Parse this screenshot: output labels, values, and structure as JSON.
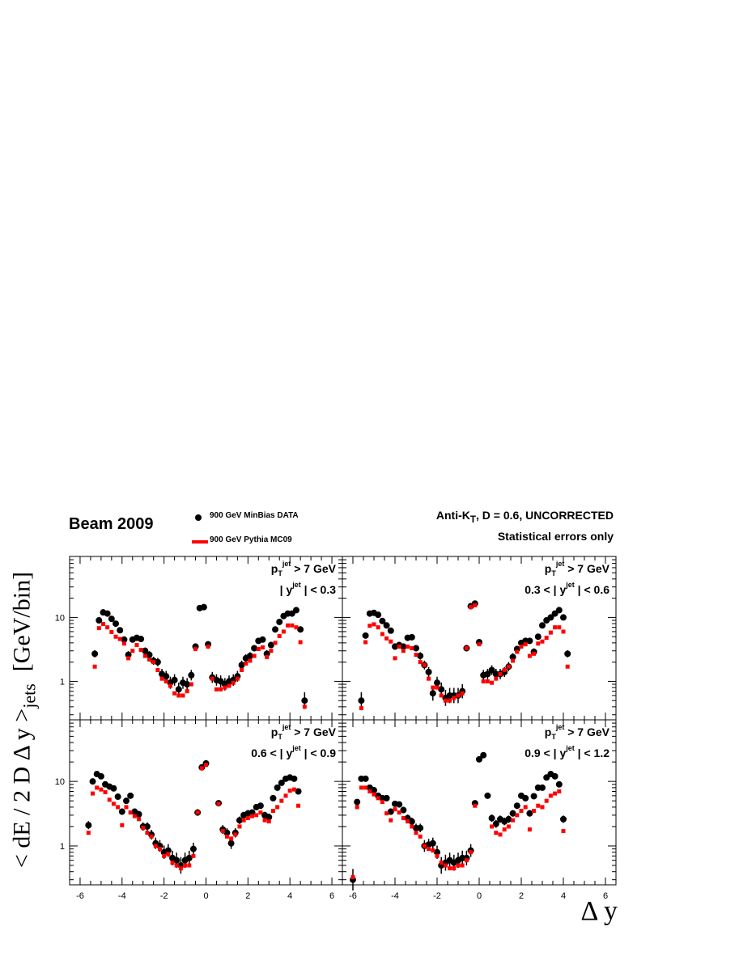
{
  "header": {
    "experiment": "Beam 2009",
    "algorithm_html": "Anti-K<sub>T</sub>, D = 0.6, UNCORRECTED",
    "note": "Statistical errors only"
  },
  "legend": {
    "data_label": "900 GeV MinBias DATA",
    "mc_label": "900 GeV Pythia MC09"
  },
  "colors": {
    "data": "#000000",
    "mc": "#ff0000"
  },
  "axes": {
    "ylabel": "< dE / 2 D Δ y >jets  [GeV/bin]",
    "xlabel": "Δ y",
    "xlim": [
      -6.5,
      6.5
    ],
    "ylim": [
      0.25,
      90
    ],
    "ylog": true,
    "xticks": [
      "-6",
      "-4",
      "-2",
      "0",
      "2",
      "4",
      "6"
    ],
    "yticks": [
      "1",
      "10"
    ]
  },
  "chart_data": [
    {
      "type": "scatter",
      "panel": "top-left",
      "cut_pt": "p_T^jet > 7 GeV",
      "cut_y": "| y^jet | < 0.3",
      "x": [
        -5.3,
        -5.1,
        -4.9,
        -4.7,
        -4.5,
        -4.3,
        -4.1,
        -3.9,
        -3.7,
        -3.5,
        -3.3,
        -3.1,
        -2.9,
        -2.7,
        -2.5,
        -2.3,
        -2.1,
        -1.9,
        -1.7,
        -1.5,
        -1.3,
        -1.1,
        -0.9,
        -0.7,
        -0.5,
        -0.3,
        -0.1,
        0.1,
        0.3,
        0.5,
        0.7,
        0.9,
        1.1,
        1.3,
        1.5,
        1.7,
        1.9,
        2.1,
        2.3,
        2.5,
        2.7,
        2.9,
        3.1,
        3.3,
        3.5,
        3.7,
        3.9,
        4.1,
        4.3,
        4.5,
        4.7,
        4.9
      ],
      "series": [
        {
          "name": "900 GeV MinBias DATA",
          "values": [
            2.7,
            9.0,
            12.0,
            11.5,
            9.5,
            8.0,
            6.3,
            4.5,
            2.6,
            4.5,
            4.8,
            4.6,
            3.0,
            2.6,
            2.1,
            2.0,
            1.3,
            1.2,
            0.95,
            1.05,
            0.75,
            0.95,
            0.9,
            1.25,
            3.5,
            14.0,
            14.5,
            3.8,
            1.15,
            1.05,
            1.0,
            0.9,
            1.0,
            1.05,
            1.2,
            1.8,
            2.3,
            2.5,
            3.3,
            4.3,
            4.5,
            2.7,
            3.7,
            6.5,
            8.5,
            10.5,
            11.5,
            11.5,
            13.0,
            6.5,
            0.5,
            null
          ]
        },
        {
          "name": "900 GeV Pythia MC09",
          "values": [
            1.7,
            6.8,
            7.9,
            7.0,
            5.9,
            5.0,
            4.6,
            3.9,
            2.3,
            3.0,
            3.7,
            3.1,
            2.5,
            2.2,
            2.0,
            1.5,
            1.1,
            1.0,
            0.85,
            0.65,
            0.6,
            0.6,
            0.7,
            0.9,
            3.2,
            null,
            null,
            3.5,
            1.1,
            0.75,
            0.75,
            0.8,
            0.85,
            0.95,
            1.1,
            1.5,
            1.9,
            2.1,
            2.5,
            3.2,
            3.4,
            2.4,
            3.0,
            4.0,
            5.1,
            6.0,
            7.5,
            7.5,
            7.0,
            4.1,
            0.4,
            null
          ]
        }
      ]
    },
    {
      "type": "scatter",
      "panel": "top-right",
      "cut_pt": "p_T^jet > 7 GeV",
      "cut_y": "0.3 < | y^jet | < 0.6",
      "x": [
        -5.7,
        -5.5,
        -5.3,
        -5.1,
        -4.9,
        -4.7,
        -4.5,
        -4.3,
        -4.1,
        -3.9,
        -3.7,
        -3.5,
        -3.3,
        -3.1,
        -2.9,
        -2.7,
        -2.5,
        -2.3,
        -2.1,
        -1.9,
        -1.7,
        -1.5,
        -1.3,
        -1.1,
        -0.9,
        -0.7,
        -0.5,
        -0.3,
        -0.1,
        0.1,
        0.3,
        0.5,
        0.7,
        0.9,
        1.1,
        1.3,
        1.5,
        1.7,
        1.9,
        2.1,
        2.3,
        2.5,
        2.7,
        2.9,
        3.1,
        3.3,
        3.5,
        3.7,
        3.9,
        4.1,
        4.3,
        4.5
      ],
      "series": [
        {
          "name": "900 GeV MinBias DATA",
          "values": [
            0.5,
            5.2,
            11.5,
            11.8,
            11.0,
            8.8,
            7.5,
            6.2,
            3.5,
            3.7,
            3.5,
            4.8,
            4.9,
            3.3,
            2.5,
            1.8,
            1.4,
            0.65,
            0.95,
            0.75,
            0.55,
            0.6,
            0.6,
            0.6,
            0.7,
            3.3,
            15.0,
            16.5,
            4.1,
            1.25,
            1.3,
            1.5,
            1.3,
            1.3,
            1.4,
            1.7,
            2.4,
            3.2,
            4.0,
            4.3,
            4.3,
            2.9,
            5.0,
            7.5,
            9.0,
            10.0,
            11.5,
            13.0,
            10.0,
            2.7,
            null,
            null
          ],
          "x_override": [
            -5.6,
            -5.4,
            -5.2,
            -5.0,
            -4.8,
            -4.6,
            -4.4,
            -4.2,
            -4.0,
            -3.8,
            -3.6,
            -3.4,
            -3.2,
            -3.0,
            -2.8,
            -2.6,
            -2.4,
            -2.2,
            -2.0,
            -1.8,
            -1.6,
            -1.4,
            -1.2,
            -1.0,
            -0.8,
            -0.6,
            -0.4,
            -0.2,
            0.0,
            0.2,
            0.4,
            0.6,
            0.8,
            1.0,
            1.2,
            1.4,
            1.6,
            1.8,
            2.0,
            2.2,
            2.4,
            2.6,
            2.8,
            3.0,
            3.2,
            3.4,
            3.6,
            3.8,
            4.0,
            4.2,
            null,
            null
          ]
        },
        {
          "name": "900 GeV Pythia MC09",
          "values": [
            0.38,
            4.1,
            7.4,
            7.8,
            7.0,
            5.5,
            4.7,
            4.2,
            2.3,
            3.5,
            3.0,
            3.5,
            3.3,
            2.6,
            2.0,
            1.8,
            1.1,
            0.8,
            0.8,
            0.6,
            0.5,
            0.5,
            0.55,
            0.6,
            0.65,
            3.3,
            14.5,
            15.5,
            3.8,
            1.0,
            1.0,
            0.95,
            1.1,
            1.3,
            1.5,
            1.7,
            2.1,
            2.9,
            3.5,
            3.8,
            2.5,
            2.7,
            3.9,
            4.2,
            4.8,
            5.8,
            7.0,
            7.0,
            6.0,
            1.7,
            null,
            null
          ],
          "x_override": [
            -5.6,
            -5.4,
            -5.2,
            -5.0,
            -4.8,
            -4.6,
            -4.4,
            -4.2,
            -4.0,
            -3.8,
            -3.6,
            -3.4,
            -3.2,
            -3.0,
            -2.8,
            -2.6,
            -2.4,
            -2.2,
            -2.0,
            -1.8,
            -1.6,
            -1.4,
            -1.2,
            -1.0,
            -0.8,
            -0.6,
            -0.4,
            -0.2,
            0.0,
            0.2,
            0.4,
            0.6,
            0.8,
            1.0,
            1.2,
            1.4,
            1.6,
            1.8,
            2.0,
            2.2,
            2.4,
            2.6,
            2.8,
            3.0,
            3.2,
            3.4,
            3.6,
            3.8,
            4.0,
            4.2,
            null,
            null
          ]
        }
      ]
    },
    {
      "type": "scatter",
      "panel": "bottom-left",
      "cut_pt": "p_T^jet > 7 GeV",
      "cut_y": "0.6 < | y^jet | < 0.9",
      "x": [
        -5.7,
        -5.5,
        -5.3,
        -5.1,
        -4.9,
        -4.7,
        -4.5,
        -4.3,
        -4.1,
        -3.9,
        -3.7,
        -3.5,
        -3.3,
        -3.1,
        -2.9,
        -2.7,
        -2.5,
        -2.3,
        -2.1,
        -1.9,
        -1.7,
        -1.5,
        -1.3,
        -1.1,
        -0.9,
        -0.7,
        -0.5,
        -0.3,
        -0.1,
        0.1,
        0.3,
        0.5,
        0.7,
        0.9,
        1.1,
        1.3,
        1.5,
        1.7,
        1.9,
        2.1,
        2.3,
        2.5,
        2.7,
        2.9,
        3.1,
        3.3,
        3.5,
        3.7,
        3.9,
        4.1,
        4.3,
        4.5
      ],
      "series": [
        {
          "name": "900 GeV MinBias DATA",
          "values": [
            2.1,
            10.0,
            13.0,
            12.0,
            9.0,
            8.3,
            7.8,
            5.8,
            3.4,
            5.0,
            6.0,
            3.4,
            3.1,
            2.0,
            2.0,
            1.5,
            1.1,
            1.0,
            0.8,
            0.85,
            0.65,
            0.6,
            0.5,
            0.6,
            0.65,
            0.9,
            3.3,
            16.5,
            19.0,
            4.6,
            1.8,
            1.6,
            1.1,
            1.6,
            2.5,
            3.0,
            3.2,
            3.3,
            4.0,
            4.2,
            3.0,
            2.8,
            5.5,
            8.0,
            9.5,
            11.0,
            11.5,
            11.0,
            7.0,
            0.5,
            null,
            null
          ],
          "x_override": [
            -5.6,
            -5.4,
            -5.2,
            -5.0,
            -4.8,
            -4.6,
            -4.4,
            -4.2,
            -4.0,
            -3.8,
            -3.6,
            -3.4,
            -3.2,
            -3.0,
            -2.8,
            -2.6,
            -2.4,
            -2.2,
            -2.0,
            -1.8,
            -1.6,
            -1.4,
            -1.2,
            -1.0,
            -0.8,
            -0.6,
            -0.4,
            -0.2,
            0.0,
            0.6,
            0.8,
            1.0,
            1.2,
            1.4,
            1.6,
            1.8,
            2.0,
            2.2,
            2.4,
            2.6,
            2.8,
            3.0,
            3.2,
            3.4,
            3.6,
            3.8,
            4.0,
            4.2,
            4.4,
            null,
            null,
            null
          ]
        },
        {
          "name": "900 GeV Pythia MC09",
          "values": [
            1.6,
            6.5,
            8.0,
            7.5,
            6.8,
            5.2,
            4.5,
            4.0,
            2.1,
            4.0,
            3.3,
            2.9,
            2.6,
            1.9,
            1.6,
            1.4,
            1.0,
            0.9,
            0.7,
            0.75,
            0.55,
            0.5,
            0.45,
            0.5,
            0.5,
            0.7,
            3.3,
            16.0,
            18.0,
            4.5,
            1.7,
            1.4,
            1.3,
            1.5,
            2.0,
            2.5,
            2.7,
            2.9,
            3.0,
            3.3,
            2.5,
            2.4,
            3.5,
            4.0,
            5.0,
            6.0,
            7.2,
            7.5,
            4.2,
            0.45,
            null,
            null
          ],
          "x_override": [
            -5.6,
            -5.4,
            -5.2,
            -5.0,
            -4.8,
            -4.6,
            -4.4,
            -4.2,
            -4.0,
            -3.8,
            -3.6,
            -3.4,
            -3.2,
            -3.0,
            -2.8,
            -2.6,
            -2.4,
            -2.2,
            -2.0,
            -1.8,
            -1.6,
            -1.4,
            -1.2,
            -1.0,
            -0.8,
            -0.6,
            -0.4,
            -0.2,
            0.0,
            0.6,
            0.8,
            1.0,
            1.2,
            1.4,
            1.6,
            1.8,
            2.0,
            2.2,
            2.4,
            2.6,
            2.8,
            3.0,
            3.2,
            3.4,
            3.6,
            3.8,
            4.0,
            4.2,
            4.4,
            null,
            null,
            null
          ]
        }
      ]
    },
    {
      "type": "scatter",
      "panel": "bottom-right",
      "cut_pt": "p_T^jet > 7 GeV",
      "cut_y": "0.9 < | y^jet | < 1.2",
      "x": [
        -6.0,
        -5.8,
        -5.6,
        -5.4,
        -5.2,
        -5.0,
        -4.8,
        -4.6,
        -4.4,
        -4.2,
        -4.0,
        -3.8,
        -3.6,
        -3.4,
        -3.2,
        -3.0,
        -2.8,
        -2.6,
        -2.4,
        -2.2,
        -2.0,
        -1.8,
        -1.6,
        -1.4,
        -1.2,
        -1.0,
        -0.8,
        -0.6,
        -0.4,
        -0.2,
        0.0,
        0.2,
        0.4,
        0.6,
        0.8,
        1.0,
        1.2,
        1.4,
        1.6,
        1.8,
        2.0,
        2.2,
        2.4,
        2.6,
        2.8,
        3.0,
        3.2,
        3.4,
        3.6,
        3.8,
        4.0
      ],
      "series": [
        {
          "name": "900 GeV MinBias DATA",
          "values": [
            0.3,
            4.8,
            11.0,
            11.0,
            8.0,
            7.3,
            6.0,
            5.5,
            5.5,
            3.4,
            4.5,
            4.4,
            3.6,
            2.7,
            2.4,
            1.9,
            1.9,
            1.0,
            1.05,
            1.1,
            0.8,
            0.5,
            0.55,
            0.6,
            0.55,
            0.6,
            0.65,
            0.65,
            0.85,
            4.6,
            22.0,
            25.5,
            6.0,
            2.7,
            2.2,
            2.6,
            2.4,
            2.6,
            3.2,
            4.2,
            6.0,
            5.5,
            3.2,
            5.9,
            8.0,
            8.0,
            11.5,
            13.0,
            12.0,
            9.0,
            2.6
          ]
        },
        {
          "name": "900 GeV Pythia MC09",
          "values": [
            0.33,
            4.0,
            8.0,
            8.0,
            7.0,
            6.3,
            5.5,
            4.8,
            3.2,
            2.5,
            3.7,
            3.3,
            2.7,
            2.4,
            2.0,
            1.6,
            1.4,
            1.0,
            0.9,
            0.85,
            0.7,
            0.55,
            0.5,
            0.45,
            0.45,
            0.5,
            0.5,
            0.6,
            0.8,
            4.2,
            null,
            null,
            null,
            2.0,
            1.6,
            1.5,
            1.8,
            2.0,
            2.5,
            3.0,
            3.5,
            4.0,
            1.8,
            3.5,
            4.2,
            4.0,
            5.0,
            6.0,
            6.5,
            7.0,
            1.7
          ]
        }
      ]
    }
  ]
}
